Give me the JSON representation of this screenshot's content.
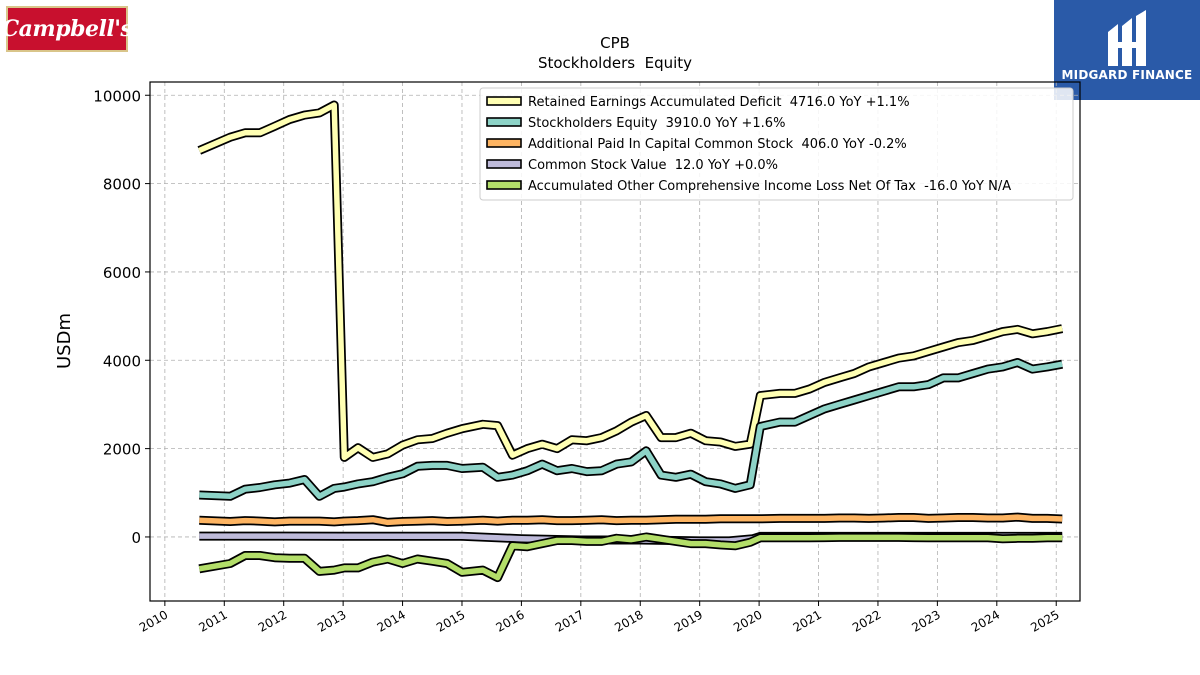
{
  "logos": {
    "left_text": "Campbell's",
    "right_text": "MIDGARD FINANCE"
  },
  "colors": {
    "retained": "#ffffb3",
    "equity": "#8dd3c7",
    "apic": "#fdb462",
    "common": "#bebada",
    "aoci": "#b3de69",
    "grid": "#b0b0b0"
  },
  "chart_data": {
    "type": "line",
    "title": "CPB",
    "subtitle": "Stockholders  Equity",
    "xlabel": "",
    "ylabel": "USDm",
    "xlim": [
      2009.75,
      2025.4
    ],
    "ylim": [
      -1450,
      10300
    ],
    "xticks": [
      "2010",
      "2011",
      "2012",
      "2013",
      "2014",
      "2015",
      "2016",
      "2017",
      "2018",
      "2019",
      "2020",
      "2021",
      "2022",
      "2023",
      "2024",
      "2025"
    ],
    "yticks": [
      "0",
      "2000",
      "4000",
      "6000",
      "8000",
      "10000"
    ],
    "grid": true,
    "legend_position": "top-right",
    "series": [
      {
        "key": "retained",
        "name": "Retained Earnings Accumulated Deficit  4716.0 YoY +1.1%",
        "points": [
          [
            2010.58,
            8750
          ],
          [
            2011.1,
            9050
          ],
          [
            2011.35,
            9150
          ],
          [
            2011.6,
            9150
          ],
          [
            2011.85,
            9300
          ],
          [
            2012.1,
            9450
          ],
          [
            2012.35,
            9550
          ],
          [
            2012.6,
            9600
          ],
          [
            2012.85,
            9780
          ],
          [
            2013.02,
            1800
          ],
          [
            2013.25,
            2020
          ],
          [
            2013.5,
            1800
          ],
          [
            2013.75,
            1880
          ],
          [
            2014.0,
            2080
          ],
          [
            2014.25,
            2200
          ],
          [
            2014.5,
            2230
          ],
          [
            2014.75,
            2350
          ],
          [
            2015.0,
            2450
          ],
          [
            2015.35,
            2550
          ],
          [
            2015.6,
            2520
          ],
          [
            2015.85,
            1850
          ],
          [
            2016.1,
            2000
          ],
          [
            2016.35,
            2100
          ],
          [
            2016.6,
            2000
          ],
          [
            2016.85,
            2200
          ],
          [
            2017.1,
            2180
          ],
          [
            2017.35,
            2250
          ],
          [
            2017.6,
            2400
          ],
          [
            2017.85,
            2600
          ],
          [
            2018.1,
            2750
          ],
          [
            2018.35,
            2250
          ],
          [
            2018.6,
            2250
          ],
          [
            2018.85,
            2350
          ],
          [
            2019.1,
            2180
          ],
          [
            2019.35,
            2150
          ],
          [
            2019.6,
            2050
          ],
          [
            2019.85,
            2100
          ],
          [
            2020.02,
            3200
          ],
          [
            2020.35,
            3250
          ],
          [
            2020.6,
            3250
          ],
          [
            2020.85,
            3350
          ],
          [
            2021.1,
            3500
          ],
          [
            2021.35,
            3600
          ],
          [
            2021.6,
            3700
          ],
          [
            2021.85,
            3850
          ],
          [
            2022.1,
            3950
          ],
          [
            2022.35,
            4050
          ],
          [
            2022.6,
            4100
          ],
          [
            2022.85,
            4200
          ],
          [
            2023.1,
            4300
          ],
          [
            2023.35,
            4400
          ],
          [
            2023.6,
            4450
          ],
          [
            2023.85,
            4550
          ],
          [
            2024.1,
            4650
          ],
          [
            2024.35,
            4700
          ],
          [
            2024.6,
            4600
          ],
          [
            2024.85,
            4650
          ],
          [
            2025.1,
            4716
          ]
        ]
      },
      {
        "key": "equity",
        "name": "Stockholders Equity  3910.0 YoY +1.6%",
        "points": [
          [
            2010.58,
            950
          ],
          [
            2011.1,
            920
          ],
          [
            2011.35,
            1080
          ],
          [
            2011.6,
            1120
          ],
          [
            2011.85,
            1180
          ],
          [
            2012.1,
            1220
          ],
          [
            2012.35,
            1300
          ],
          [
            2012.6,
            920
          ],
          [
            2012.85,
            1100
          ],
          [
            2013.02,
            1130
          ],
          [
            2013.25,
            1200
          ],
          [
            2013.5,
            1250
          ],
          [
            2013.75,
            1350
          ],
          [
            2014.0,
            1430
          ],
          [
            2014.25,
            1600
          ],
          [
            2014.5,
            1620
          ],
          [
            2014.75,
            1620
          ],
          [
            2015.0,
            1550
          ],
          [
            2015.35,
            1580
          ],
          [
            2015.6,
            1350
          ],
          [
            2015.85,
            1400
          ],
          [
            2016.1,
            1500
          ],
          [
            2016.35,
            1650
          ],
          [
            2016.6,
            1500
          ],
          [
            2016.85,
            1550
          ],
          [
            2017.1,
            1480
          ],
          [
            2017.35,
            1500
          ],
          [
            2017.6,
            1650
          ],
          [
            2017.85,
            1700
          ],
          [
            2018.1,
            1950
          ],
          [
            2018.35,
            1400
          ],
          [
            2018.6,
            1350
          ],
          [
            2018.85,
            1420
          ],
          [
            2019.1,
            1250
          ],
          [
            2019.35,
            1200
          ],
          [
            2019.6,
            1100
          ],
          [
            2019.85,
            1180
          ],
          [
            2020.02,
            2500
          ],
          [
            2020.35,
            2600
          ],
          [
            2020.6,
            2600
          ],
          [
            2020.85,
            2750
          ],
          [
            2021.1,
            2900
          ],
          [
            2021.35,
            3000
          ],
          [
            2021.6,
            3100
          ],
          [
            2021.85,
            3200
          ],
          [
            2022.1,
            3300
          ],
          [
            2022.35,
            3400
          ],
          [
            2022.6,
            3400
          ],
          [
            2022.85,
            3450
          ],
          [
            2023.1,
            3600
          ],
          [
            2023.35,
            3600
          ],
          [
            2023.6,
            3700
          ],
          [
            2023.85,
            3800
          ],
          [
            2024.1,
            3850
          ],
          [
            2024.35,
            3950
          ],
          [
            2024.6,
            3800
          ],
          [
            2024.85,
            3850
          ],
          [
            2025.1,
            3910
          ]
        ]
      },
      {
        "key": "apic",
        "name": "Additional Paid In Capital Common Stock  406.0 YoY -0.2%",
        "points": [
          [
            2010.58,
            380
          ],
          [
            2011.1,
            350
          ],
          [
            2011.35,
            370
          ],
          [
            2011.6,
            360
          ],
          [
            2011.85,
            340
          ],
          [
            2012.1,
            360
          ],
          [
            2012.35,
            360
          ],
          [
            2012.6,
            360
          ],
          [
            2012.85,
            340
          ],
          [
            2013.02,
            360
          ],
          [
            2013.25,
            370
          ],
          [
            2013.5,
            390
          ],
          [
            2013.75,
            330
          ],
          [
            2014.0,
            350
          ],
          [
            2014.25,
            360
          ],
          [
            2014.5,
            370
          ],
          [
            2014.75,
            350
          ],
          [
            2015.0,
            360
          ],
          [
            2015.35,
            380
          ],
          [
            2015.6,
            360
          ],
          [
            2015.85,
            380
          ],
          [
            2016.1,
            380
          ],
          [
            2016.35,
            390
          ],
          [
            2016.6,
            370
          ],
          [
            2016.85,
            370
          ],
          [
            2017.1,
            380
          ],
          [
            2017.35,
            390
          ],
          [
            2017.6,
            370
          ],
          [
            2017.85,
            380
          ],
          [
            2018.1,
            380
          ],
          [
            2018.35,
            390
          ],
          [
            2018.6,
            400
          ],
          [
            2018.85,
            400
          ],
          [
            2019.1,
            400
          ],
          [
            2019.35,
            410
          ],
          [
            2019.6,
            410
          ],
          [
            2019.85,
            410
          ],
          [
            2020.02,
            410
          ],
          [
            2020.35,
            420
          ],
          [
            2020.6,
            420
          ],
          [
            2020.85,
            420
          ],
          [
            2021.1,
            420
          ],
          [
            2021.35,
            430
          ],
          [
            2021.6,
            430
          ],
          [
            2021.85,
            420
          ],
          [
            2022.1,
            430
          ],
          [
            2022.35,
            440
          ],
          [
            2022.6,
            440
          ],
          [
            2022.85,
            420
          ],
          [
            2023.1,
            430
          ],
          [
            2023.35,
            440
          ],
          [
            2023.6,
            440
          ],
          [
            2023.85,
            430
          ],
          [
            2024.1,
            430
          ],
          [
            2024.35,
            450
          ],
          [
            2024.6,
            420
          ],
          [
            2024.85,
            420
          ],
          [
            2025.1,
            406
          ]
        ]
      },
      {
        "key": "common",
        "name": "Common Stock Value  12.0 YoY +0.0%",
        "points": [
          [
            2010.58,
            20
          ],
          [
            2012.0,
            20
          ],
          [
            2013.0,
            15
          ],
          [
            2014.0,
            15
          ],
          [
            2015.0,
            15
          ],
          [
            2016.0,
            -40
          ],
          [
            2017.0,
            -70
          ],
          [
            2018.0,
            -70
          ],
          [
            2019.0,
            -90
          ],
          [
            2019.5,
            -90
          ],
          [
            2019.9,
            -40
          ],
          [
            2020.02,
            12
          ],
          [
            2021.0,
            12
          ],
          [
            2022.0,
            12
          ],
          [
            2023.0,
            12
          ],
          [
            2024.0,
            12
          ],
          [
            2025.1,
            12
          ]
        ]
      },
      {
        "key": "aoci",
        "name": "Accumulated Other Comprehensive Income Loss Net Of Tax  -16.0 YoY N/A",
        "points": [
          [
            2010.58,
            -720
          ],
          [
            2011.1,
            -600
          ],
          [
            2011.35,
            -420
          ],
          [
            2011.6,
            -420
          ],
          [
            2011.85,
            -470
          ],
          [
            2012.1,
            -480
          ],
          [
            2012.35,
            -480
          ],
          [
            2012.6,
            -780
          ],
          [
            2012.85,
            -750
          ],
          [
            2013.02,
            -700
          ],
          [
            2013.25,
            -700
          ],
          [
            2013.5,
            -570
          ],
          [
            2013.75,
            -500
          ],
          [
            2014.0,
            -600
          ],
          [
            2014.25,
            -500
          ],
          [
            2014.5,
            -550
          ],
          [
            2014.75,
            -600
          ],
          [
            2015.0,
            -800
          ],
          [
            2015.35,
            -750
          ],
          [
            2015.6,
            -920
          ],
          [
            2015.85,
            -200
          ],
          [
            2016.1,
            -220
          ],
          [
            2016.35,
            -150
          ],
          [
            2016.6,
            -80
          ],
          [
            2016.85,
            -80
          ],
          [
            2017.1,
            -100
          ],
          [
            2017.35,
            -100
          ],
          [
            2017.6,
            -30
          ],
          [
            2017.85,
            -60
          ],
          [
            2018.1,
            0
          ],
          [
            2018.35,
            -50
          ],
          [
            2018.6,
            -100
          ],
          [
            2018.85,
            -150
          ],
          [
            2019.1,
            -150
          ],
          [
            2019.35,
            -180
          ],
          [
            2019.6,
            -200
          ],
          [
            2019.85,
            -120
          ],
          [
            2020.02,
            -20
          ],
          [
            2020.35,
            -20
          ],
          [
            2020.6,
            -20
          ],
          [
            2020.85,
            -20
          ],
          [
            2021.1,
            -15
          ],
          [
            2021.35,
            -10
          ],
          [
            2021.6,
            -10
          ],
          [
            2021.85,
            -10
          ],
          [
            2022.1,
            -10
          ],
          [
            2022.35,
            -10
          ],
          [
            2022.6,
            -15
          ],
          [
            2022.85,
            -20
          ],
          [
            2023.1,
            -20
          ],
          [
            2023.35,
            -20
          ],
          [
            2023.6,
            -20
          ],
          [
            2023.85,
            -20
          ],
          [
            2024.1,
            -40
          ],
          [
            2024.35,
            -30
          ],
          [
            2024.6,
            -30
          ],
          [
            2024.85,
            -20
          ],
          [
            2025.1,
            -16
          ]
        ]
      }
    ]
  }
}
